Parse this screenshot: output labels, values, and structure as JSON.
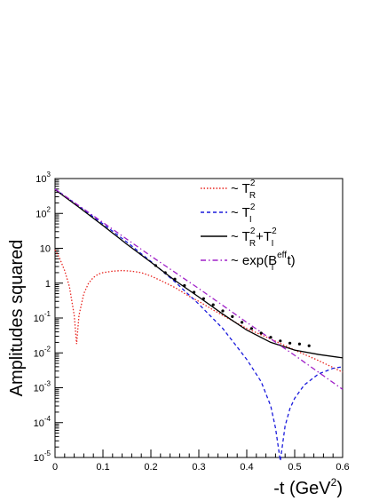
{
  "chart_data": {
    "type": "line",
    "title": "",
    "xlabel": {
      "base": "-t (GeV",
      "sup": "2",
      "tail": ")"
    },
    "ylabel": "Amplitudes squared",
    "xlim": [
      0,
      0.6
    ],
    "ylim": [
      1e-05,
      1000
    ],
    "y_scale": "log",
    "grid": false,
    "legend_position": "top-right",
    "x_ticks": [
      {
        "value": 0,
        "label": "0"
      },
      {
        "value": 0.1,
        "label": "0.1"
      },
      {
        "value": 0.2,
        "label": "0.2"
      },
      {
        "value": 0.3,
        "label": "0.3"
      },
      {
        "value": 0.4,
        "label": "0.4"
      },
      {
        "value": 0.5,
        "label": "0.5"
      },
      {
        "value": 0.6,
        "label": "0.6"
      }
    ],
    "y_ticks": [
      {
        "value": 1000,
        "label": "10",
        "sup": "3"
      },
      {
        "value": 100,
        "label": "10",
        "sup": "2"
      },
      {
        "value": 10,
        "label": "10",
        "sup": ""
      },
      {
        "value": 1,
        "label": "1",
        "sup": ""
      },
      {
        "value": 0.1,
        "label": "10",
        "sup": "-1"
      },
      {
        "value": 0.01,
        "label": "10",
        "sup": "-2"
      },
      {
        "value": 0.001,
        "label": "10",
        "sup": "-3"
      },
      {
        "value": 0.0001,
        "label": "10",
        "sup": "-4"
      },
      {
        "value": 1e-05,
        "label": "10",
        "sup": "-5"
      }
    ],
    "series": [
      {
        "legend": "~ T_R^2",
        "color": "#e8231e",
        "dash": "dot",
        "x": [
          0.0,
          0.01,
          0.02,
          0.03,
          0.04,
          0.045,
          0.05,
          0.06,
          0.07,
          0.08,
          0.09,
          0.1,
          0.12,
          0.14,
          0.16,
          0.18,
          0.2,
          0.22,
          0.25,
          0.28,
          0.3,
          0.33,
          0.36,
          0.4,
          0.45,
          0.5,
          0.55,
          0.6
        ],
        "y": [
          9.0,
          5.0,
          2.3,
          0.8,
          0.12,
          0.018,
          0.12,
          0.5,
          1.0,
          1.45,
          1.8,
          2.0,
          2.2,
          2.3,
          2.2,
          2.0,
          1.6,
          1.2,
          0.75,
          0.42,
          0.3,
          0.17,
          0.1,
          0.05,
          0.025,
          0.012,
          0.006,
          0.0028
        ]
      },
      {
        "legend": "~ T_I^2",
        "color": "#1a1adc",
        "dash": "dash",
        "x": [
          0.0,
          0.05,
          0.1,
          0.15,
          0.2,
          0.25,
          0.3,
          0.35,
          0.4,
          0.43,
          0.45,
          0.46,
          0.47,
          0.48,
          0.49,
          0.5,
          0.52,
          0.55,
          0.58,
          0.6
        ],
        "y": [
          500,
          160,
          50,
          15,
          4.2,
          1.1,
          0.25,
          0.05,
          0.0065,
          0.0015,
          0.0003,
          7e-05,
          8e-06,
          8e-05,
          0.00025,
          0.0005,
          0.0012,
          0.0025,
          0.0036,
          0.004
        ]
      },
      {
        "legend": "~ T_R^2+T_I^2",
        "color": "#000000",
        "dash": "solid",
        "x": [
          0.0,
          0.05,
          0.1,
          0.15,
          0.2,
          0.25,
          0.3,
          0.35,
          0.4,
          0.45,
          0.5,
          0.55,
          0.6
        ],
        "y": [
          480,
          150,
          45,
          13,
          4.0,
          1.2,
          0.4,
          0.13,
          0.045,
          0.02,
          0.012,
          0.009,
          0.0072
        ]
      },
      {
        "legend": "~ exp(B_I^eff t)",
        "color": "#a020c8",
        "dash": "dashdot",
        "x": [
          0.0,
          0.1,
          0.2,
          0.3,
          0.4,
          0.5,
          0.6
        ],
        "y": [
          500,
          55,
          6.0,
          0.7,
          0.075,
          0.0085,
          0.0009
        ]
      }
    ],
    "data_points": {
      "x": [
        0.21,
        0.23,
        0.25,
        0.27,
        0.29,
        0.31,
        0.33,
        0.35,
        0.37,
        0.39,
        0.41,
        0.43,
        0.45,
        0.47,
        0.49,
        0.51,
        0.53
      ],
      "y": [
        3.2,
        2.0,
        1.3,
        0.85,
        0.55,
        0.36,
        0.24,
        0.16,
        0.11,
        0.075,
        0.05,
        0.037,
        0.028,
        0.022,
        0.019,
        0.018,
        0.016
      ]
    },
    "legend": [
      {
        "text": "~ T",
        "sup": "2",
        "sub": "R",
        "tail": ""
      },
      {
        "text": "~ T",
        "sup": "2",
        "sub": "I",
        "tail": ""
      },
      {
        "text": "~ T",
        "sup": "2",
        "sub": "R",
        "tail": "+T",
        "sup2": "2",
        "sub2": "I"
      },
      {
        "text": "~ exp(B",
        "sup": "eff",
        "sub": "I",
        "tail": " t)"
      }
    ]
  }
}
